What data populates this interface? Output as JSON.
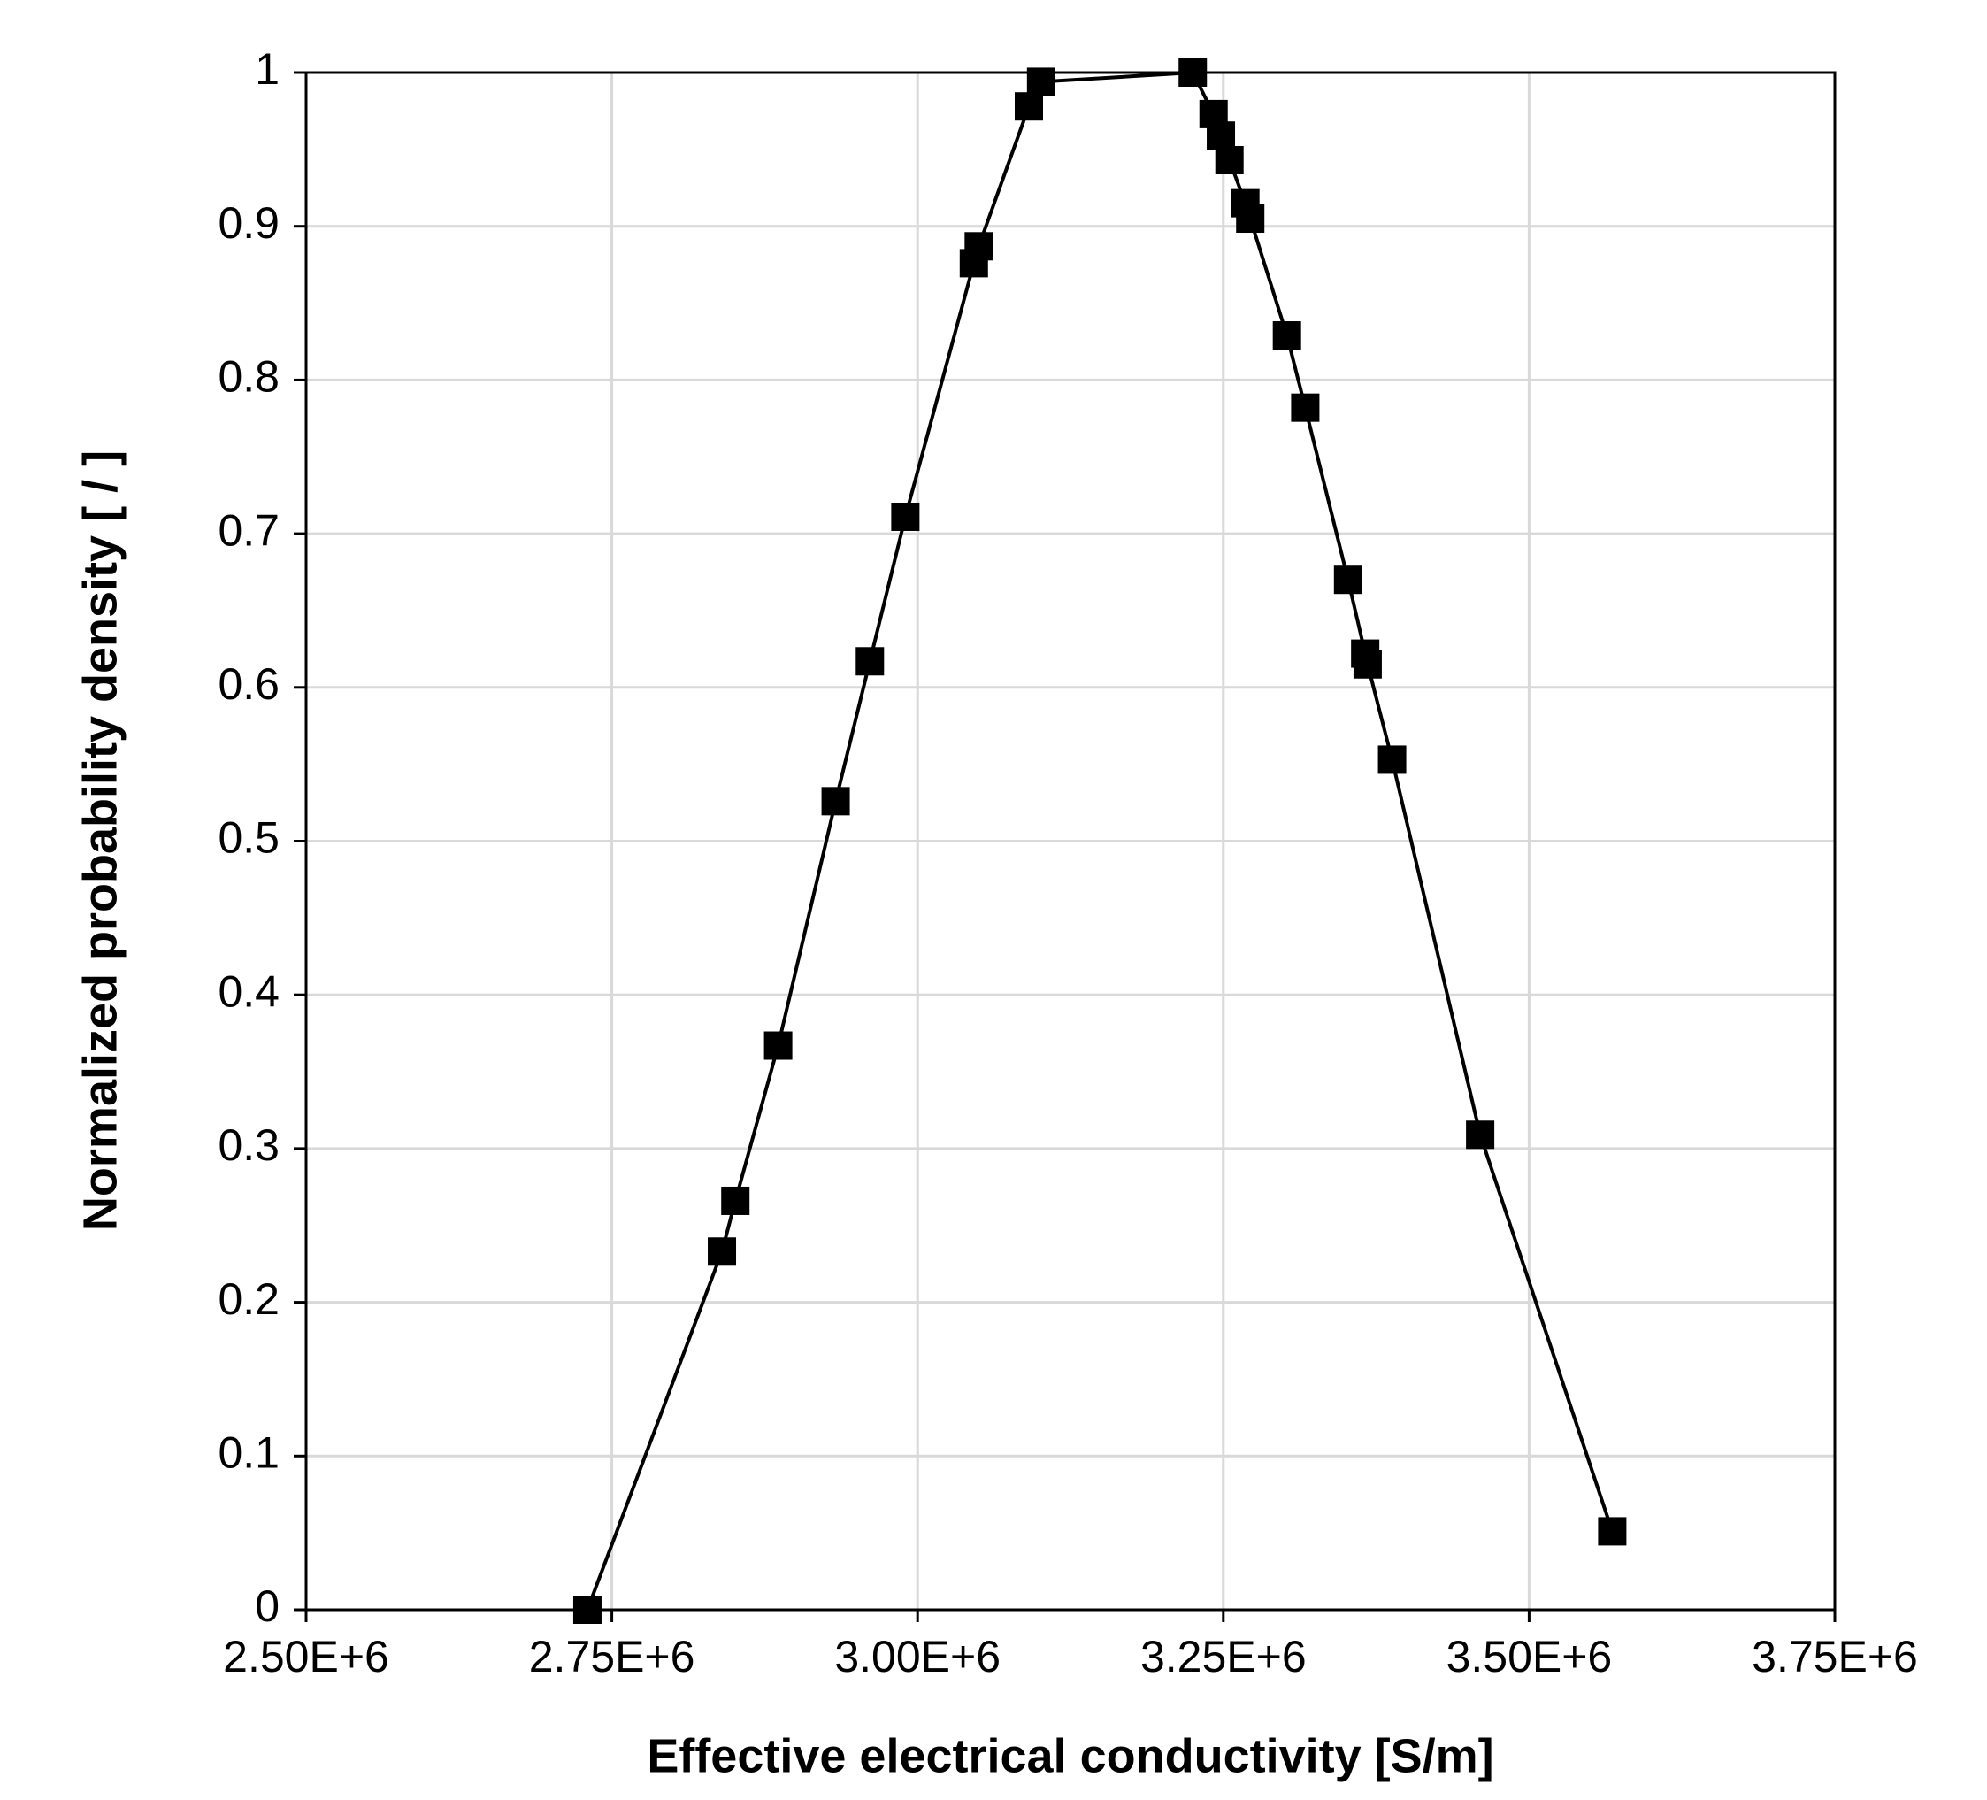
{
  "chart_data": {
    "type": "line",
    "x_label": "Effective electrical conductivity [S/m]",
    "y_label": "Normalized probability density [ / ]",
    "x": [
      2730000,
      2840000,
      2851000,
      2886000,
      2933000,
      2961000,
      2990000,
      3046000,
      3050000,
      3091000,
      3101000,
      3225000,
      3242000,
      3248000,
      3255000,
      3268000,
      3272000,
      3302000,
      3317000,
      3352000,
      3366000,
      3368000,
      3388000,
      3460000,
      3568000
    ],
    "series": [
      {
        "color": "#000000",
        "marker": "square",
        "values": [
          0,
          0.233,
          0.266,
          0.367,
          0.526,
          0.617,
          0.711,
          0.876,
          0.887,
          0.978,
          0.994,
          1.0,
          0.973,
          0.959,
          0.943,
          0.915,
          0.905,
          0.829,
          0.782,
          0.67,
          0.622,
          0.615,
          0.553,
          0.309,
          0.051
        ]
      }
    ],
    "xlim": [
      2500000,
      3750000
    ],
    "xticks": [
      {
        "value": 2500000,
        "label": "2.50E+6"
      },
      {
        "value": 2750000,
        "label": "2.75E+6"
      },
      {
        "value": 3000000,
        "label": "3.00E+6"
      },
      {
        "value": 3250000,
        "label": "3.25E+6"
      },
      {
        "value": 3500000,
        "label": "3.50E+6"
      },
      {
        "value": 3750000,
        "label": "3.75E+6"
      }
    ],
    "ylim": [
      0,
      1
    ],
    "yticks": [
      0,
      0.1,
      0.2,
      0.3,
      0.4,
      0.5,
      0.6,
      0.7,
      0.8,
      0.9,
      1
    ],
    "grid": true
  }
}
